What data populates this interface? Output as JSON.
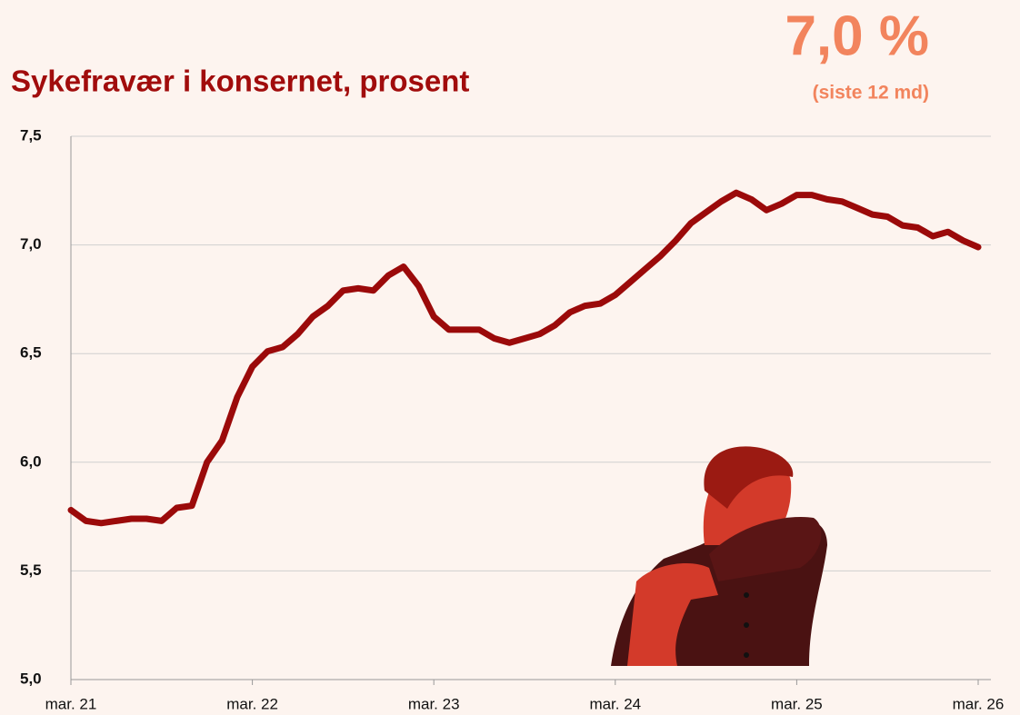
{
  "chart_data": {
    "type": "line",
    "title": "Sykefravær i konsernet, prosent",
    "headline": "7,0 %",
    "headline_note": "(siste 12 md)",
    "categories": [
      "mar. 21",
      null,
      null,
      null,
      null,
      null,
      null,
      null,
      null,
      null,
      null,
      null,
      "mar. 22",
      null,
      null,
      null,
      null,
      null,
      null,
      null,
      null,
      null,
      null,
      null,
      "mar. 23",
      null,
      null,
      null,
      null,
      null,
      null,
      null,
      null,
      null,
      null,
      null,
      "mar. 24",
      null,
      null,
      null,
      null,
      null,
      null,
      null,
      null,
      null,
      null,
      null,
      "mar. 25",
      null,
      null,
      null,
      null,
      null,
      null,
      null,
      null,
      null,
      null,
      null,
      "mar. 26"
    ],
    "values": [
      5.78,
      5.73,
      5.72,
      5.73,
      5.74,
      5.74,
      5.73,
      5.79,
      5.8,
      6.0,
      6.1,
      6.3,
      6.44,
      6.51,
      6.53,
      6.59,
      6.67,
      6.72,
      6.79,
      6.8,
      6.79,
      6.86,
      6.9,
      6.81,
      6.67,
      6.61,
      6.61,
      6.61,
      6.57,
      6.55,
      6.57,
      6.59,
      6.63,
      6.69,
      6.72,
      6.73,
      6.77,
      6.83,
      6.89,
      6.95,
      7.02,
      7.1,
      7.15,
      7.2,
      7.24,
      7.21,
      7.16,
      7.19,
      7.23,
      7.23,
      7.21,
      7.2,
      7.17,
      7.14,
      7.13,
      7.09,
      7.08,
      7.04,
      7.06,
      7.02,
      6.99
    ],
    "color": "#9b0a0a",
    "ylim": [
      5.0,
      7.5
    ],
    "yticks": [
      {
        "value": 5.0,
        "label": "5,0"
      },
      {
        "value": 5.5,
        "label": "5,5"
      },
      {
        "value": 6.0,
        "label": "6,0"
      },
      {
        "value": 6.5,
        "label": "6,5"
      },
      {
        "value": 7.0,
        "label": "7,0"
      },
      {
        "value": 7.5,
        "label": "7,5"
      }
    ],
    "grid": true
  }
}
